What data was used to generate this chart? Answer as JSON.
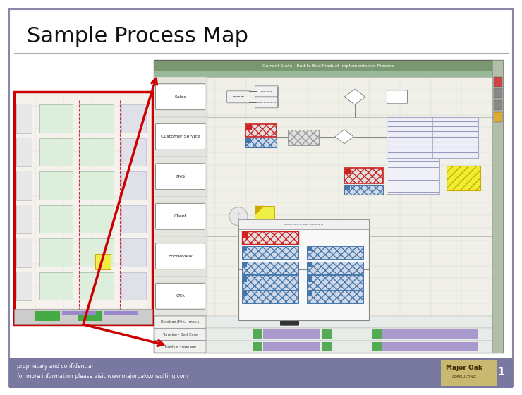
{
  "title": "Sample Process Map",
  "title_fontsize": 22,
  "slide_bg": "#ffffff",
  "slide_border_color": "#8888aa",
  "footer_bg": "#7878a0",
  "footer_text1": "proprietary and confidential",
  "footer_text2": "for more information please visit www.majoroakconsulting.com",
  "footer_text_color": "#ffffff",
  "footer_number": "31",
  "inset_border_color": "#cc0000",
  "arrow_color": "#cc0000",
  "map_bg": "#f0f0e8",
  "map_header_bg": "#7a9870",
  "map_grid_color": "#c8d8c8",
  "map_header_text": "Current State - End to End Product Implementation Process",
  "swim_lanes": [
    "Sales",
    "Customer Service",
    "FMS",
    "Client",
    "Bootleview",
    "OTA"
  ],
  "bottom_rows": [
    "Duration (Min. - max.)",
    "Timeline - Best Case",
    "Timeline - Average"
  ]
}
